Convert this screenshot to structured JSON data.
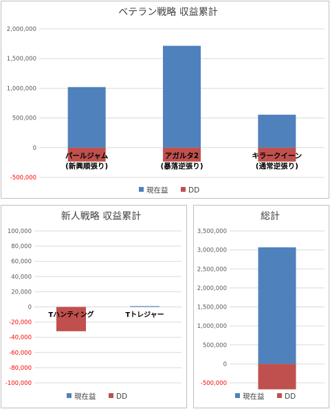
{
  "colors": {
    "current_profit": "#4f81bd",
    "dd": "#c0504d",
    "grid": "#d9d9d9",
    "axis_text": "#595959",
    "negative_text": "#ff0000"
  },
  "chart_data": [
    {
      "type": "bar",
      "title": "ベテラン戦略 収益累計",
      "categories": [
        "パールジャム\n(新興順張り)",
        "アガルタ2\n(暴落逆張り)",
        "キラークイーン\n(通常逆張り)"
      ],
      "series": [
        {
          "name": "現在益",
          "color": "#4f81bd",
          "values": [
            1020000,
            1715000,
            555000
          ]
        },
        {
          "name": "DD",
          "color": "#c0504d",
          "values": [
            -235000,
            -235000,
            -235000
          ]
        }
      ],
      "ylim": [
        -500000,
        2000000
      ],
      "yticks": [
        "-500,000",
        "0",
        "500,000",
        "1,000,000",
        "1,500,000",
        "2,000,000"
      ],
      "ytick_values": [
        -500000,
        0,
        500000,
        1000000,
        1500000,
        2000000
      ],
      "grid": true,
      "legend": "bottom",
      "stacked": false
    },
    {
      "type": "bar",
      "title": "新人戦略 収益累計",
      "categories": [
        "Tハンティング",
        "Tトレジャー"
      ],
      "series": [
        {
          "name": "現在益",
          "color": "#4f81bd",
          "values": [
            0,
            1000
          ]
        },
        {
          "name": "DD",
          "color": "#c0504d",
          "values": [
            -32000,
            0
          ]
        }
      ],
      "ylim": [
        -100000,
        100000
      ],
      "yticks": [
        "-100,000",
        "-80,000",
        "-60,000",
        "-40,000",
        "-20,000",
        "0",
        "20,000",
        "40,000",
        "60,000",
        "80,000",
        "100,000"
      ],
      "ytick_values": [
        -100000,
        -80000,
        -60000,
        -40000,
        -20000,
        0,
        20000,
        40000,
        60000,
        80000,
        100000
      ],
      "grid": true,
      "legend": "bottom",
      "stacked": false
    },
    {
      "type": "bar",
      "title": "総計",
      "categories": [
        ""
      ],
      "series": [
        {
          "name": "現在益",
          "color": "#4f81bd",
          "values": [
            3070000
          ]
        },
        {
          "name": "DD",
          "color": "#c0504d",
          "values": [
            -670000
          ]
        }
      ],
      "ylim": [
        -500000,
        3500000
      ],
      "yticks": [
        "-500,000",
        "0",
        "500,000",
        "1,000,000",
        "1,500,000",
        "2,000,000",
        "2,500,000",
        "3,000,000",
        "3,500,000"
      ],
      "ytick_values": [
        -500000,
        0,
        500000,
        1000000,
        1500000,
        2000000,
        2500000,
        3000000,
        3500000
      ],
      "grid": true,
      "legend": "bottom",
      "stacked": false
    }
  ]
}
